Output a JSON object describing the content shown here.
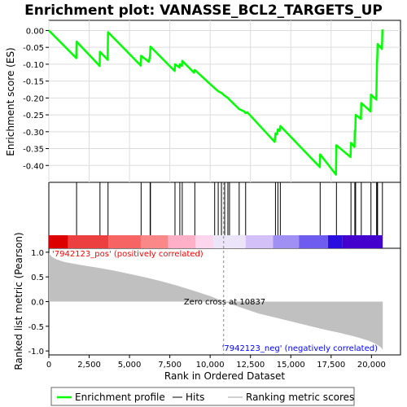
{
  "chart_data": {
    "type": "line",
    "title": "Enrichment plot: VANASSE_BCL2_TARGETS_UP",
    "x_range": [
      0,
      21800
    ],
    "x_ticks": [
      0,
      2500,
      5000,
      7500,
      10000,
      12500,
      15000,
      17500,
      20000
    ],
    "x_tick_labels": [
      "0",
      "2,500",
      "5,000",
      "7,500",
      "10,000",
      "12,500",
      "15,000",
      "17,500",
      "20,000"
    ],
    "xlabel": "Rank in Ordered Dataset",
    "es_panel": {
      "ylabel": "Enrichment score (ES)",
      "ylim": [
        -0.45,
        0.03
      ],
      "y_ticks": [
        0.0,
        -0.05,
        -0.1,
        -0.15,
        -0.2,
        -0.25,
        -0.3,
        -0.35,
        -0.4
      ],
      "y_tick_labels": [
        "0.00",
        "-0.05",
        "-0.10",
        "-0.15",
        "-0.20",
        "-0.25",
        "-0.30",
        "-0.35",
        "-0.40"
      ],
      "series": [
        {
          "name": "Enrichment profile",
          "color": "#00ff00",
          "points": [
            [
              0,
              0.0
            ],
            [
              1700,
              -0.082
            ],
            [
              1720,
              -0.033
            ],
            [
              3150,
              -0.105
            ],
            [
              3170,
              -0.063
            ],
            [
              3650,
              -0.087
            ],
            [
              3670,
              -0.005
            ],
            [
              5700,
              -0.104
            ],
            [
              5720,
              -0.075
            ],
            [
              6200,
              -0.093
            ],
            [
              6280,
              -0.073
            ],
            [
              6300,
              -0.048
            ],
            [
              7800,
              -0.12
            ],
            [
              7820,
              -0.1
            ],
            [
              8100,
              -0.11
            ],
            [
              8120,
              -0.1
            ],
            [
              8250,
              -0.105
            ],
            [
              8270,
              -0.09
            ],
            [
              9000,
              -0.125
            ],
            [
              9050,
              -0.117
            ],
            [
              10300,
              -0.172
            ],
            [
              10500,
              -0.18
            ],
            [
              10700,
              -0.185
            ],
            [
              10900,
              -0.193
            ],
            [
              11100,
              -0.2
            ],
            [
              11200,
              -0.205
            ],
            [
              11800,
              -0.233
            ],
            [
              12100,
              -0.24
            ],
            [
              12200,
              -0.245
            ],
            [
              12300,
              -0.242
            ],
            [
              14000,
              -0.33
            ],
            [
              14050,
              -0.305
            ],
            [
              14150,
              -0.308
            ],
            [
              14200,
              -0.293
            ],
            [
              14300,
              -0.298
            ],
            [
              14350,
              -0.283
            ],
            [
              16800,
              -0.405
            ],
            [
              16820,
              -0.367
            ],
            [
              17800,
              -0.427
            ],
            [
              17830,
              -0.34
            ],
            [
              18700,
              -0.375
            ],
            [
              18730,
              -0.333
            ],
            [
              18950,
              -0.345
            ],
            [
              18970,
              -0.296
            ],
            [
              19000,
              -0.3
            ],
            [
              19020,
              -0.25
            ],
            [
              19350,
              -0.262
            ],
            [
              19370,
              -0.215
            ],
            [
              19950,
              -0.24
            ],
            [
              19970,
              -0.19
            ],
            [
              20300,
              -0.205
            ],
            [
              20320,
              -0.15
            ],
            [
              20340,
              -0.097
            ],
            [
              20360,
              -0.08
            ],
            [
              20380,
              -0.04
            ],
            [
              20650,
              -0.055
            ],
            [
              20680,
              0.003
            ]
          ]
        }
      ]
    },
    "hits": {
      "name": "Hits",
      "color": "#000000",
      "positions": [
        1720,
        3170,
        3670,
        5720,
        6280,
        6300,
        7820,
        8120,
        8270,
        9050,
        10280,
        10500,
        10700,
        10900,
        11100,
        11200,
        11800,
        12200,
        14050,
        14200,
        14350,
        16820,
        17830,
        18730,
        18970,
        19020,
        19370,
        19970,
        20320,
        20340,
        20360,
        20380,
        20680
      ]
    },
    "colorbar": {
      "colors": [
        "#dd0000",
        "#ec4040",
        "#f66464",
        "#fb8888",
        "#fdb0c8",
        "#fdd6ee",
        "#ece4f8",
        "#d4c0f8",
        "#a090f4",
        "#6e5cf0",
        "#2a0ee0",
        "#4400cc",
        "#5000bb"
      ],
      "stops": [
        0,
        1200,
        3700,
        5700,
        7400,
        9100,
        10200,
        12200,
        13900,
        15500,
        17300,
        18200,
        20700
      ]
    },
    "metric_panel": {
      "ylabel": "Ranked list metric (Pearson)",
      "ylim": [
        -1.08,
        1.08
      ],
      "y_ticks": [
        1.0,
        0.5,
        0.0,
        -0.5,
        -1.0
      ],
      "y_tick_labels": [
        "1.0",
        "0.5",
        "0.0",
        "-0.5",
        "-1.0"
      ],
      "fill_color": "#c0c0c0",
      "points": [
        [
          0,
          0.98
        ],
        [
          200,
          0.9
        ],
        [
          500,
          0.85
        ],
        [
          1000,
          0.8
        ],
        [
          2000,
          0.74
        ],
        [
          3000,
          0.69
        ],
        [
          4000,
          0.63
        ],
        [
          5000,
          0.56
        ],
        [
          6000,
          0.49
        ],
        [
          7000,
          0.41
        ],
        [
          8000,
          0.32
        ],
        [
          9000,
          0.22
        ],
        [
          10000,
          0.11
        ],
        [
          10837,
          0.0
        ],
        [
          12000,
          -0.13
        ],
        [
          13000,
          -0.24
        ],
        [
          14000,
          -0.32
        ],
        [
          15000,
          -0.4
        ],
        [
          16000,
          -0.48
        ],
        [
          17000,
          -0.56
        ],
        [
          18000,
          -0.63
        ],
        [
          19000,
          -0.71
        ],
        [
          19800,
          -0.79
        ],
        [
          20300,
          -0.86
        ],
        [
          20600,
          -0.93
        ],
        [
          20700,
          -0.98
        ]
      ],
      "zero_cross": 10837,
      "zero_cross_label": "Zero cross at 10837",
      "pos_label": "'7942123_pos' (positively correlated)",
      "neg_label": "'7942123_neg' (negatively correlated)",
      "pos_color": "#ff0000",
      "neg_color": "#0000ff"
    },
    "legend": {
      "placement": "bottom",
      "entries": [
        {
          "label": "Enrichment profile",
          "color": "#00ff00"
        },
        {
          "label": "Hits",
          "color": "#000000"
        },
        {
          "label": "Ranking metric scores",
          "color": "#c0c0c0"
        }
      ]
    }
  }
}
